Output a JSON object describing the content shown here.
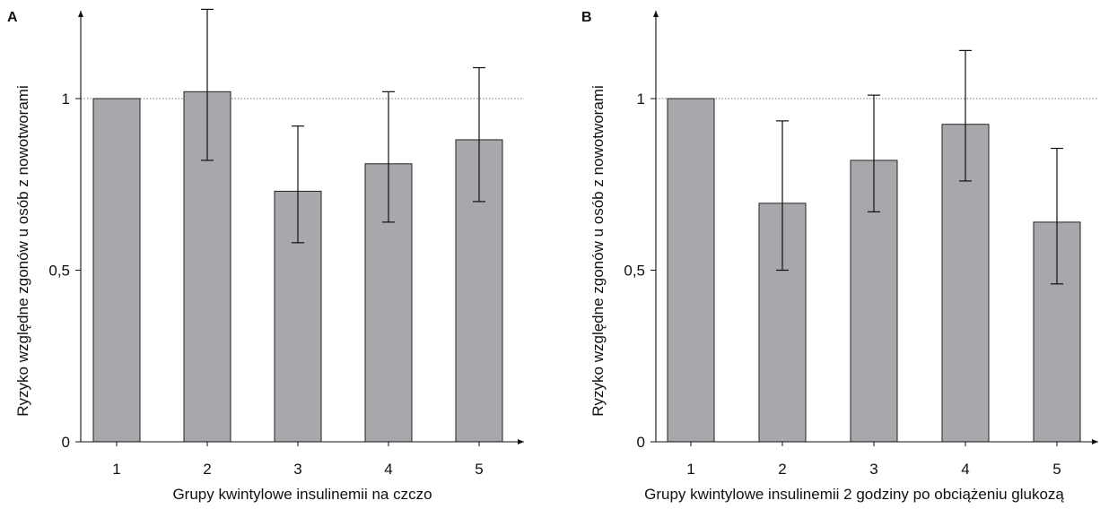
{
  "chart_data": [
    {
      "type": "bar",
      "panel_label": "A",
      "categories": [
        "1",
        "2",
        "3",
        "4",
        "5"
      ],
      "values": [
        1.0,
        1.02,
        0.73,
        0.81,
        0.88
      ],
      "error_bars": [
        {
          "upper": 1.0,
          "lower": 1.0
        },
        {
          "upper": 1.26,
          "lower": 0.82
        },
        {
          "upper": 0.92,
          "lower": 0.58
        },
        {
          "upper": 1.02,
          "lower": 0.64
        },
        {
          "upper": 1.09,
          "lower": 0.7
        }
      ],
      "xlabel": "Grupy kwintylowe insulinemii na czczo",
      "ylabel": "Ryzyko względne zgonów u osób z nowotworami",
      "ylim": [
        0,
        1.25
      ],
      "yticks": [
        {
          "value": 0,
          "label": "0"
        },
        {
          "value": 0.5,
          "label": "0,5"
        },
        {
          "value": 1,
          "label": "1"
        }
      ],
      "reference_line": 1,
      "bar_color": "#a7a8ab"
    },
    {
      "type": "bar",
      "panel_label": "B",
      "categories": [
        "1",
        "2",
        "3",
        "4",
        "5"
      ],
      "values": [
        1.0,
        0.695,
        0.82,
        0.925,
        0.64
      ],
      "error_bars": [
        {
          "upper": 1.0,
          "lower": 1.0
        },
        {
          "upper": 0.935,
          "lower": 0.5
        },
        {
          "upper": 1.01,
          "lower": 0.67
        },
        {
          "upper": 1.14,
          "lower": 0.76
        },
        {
          "upper": 0.855,
          "lower": 0.46
        }
      ],
      "xlabel": "Grupy kwintylowe insulinemii 2 godziny po obciążeniu glukozą",
      "ylabel": "Ryzyko względne zgonów u osób z nowotworami",
      "ylim": [
        0,
        1.25
      ],
      "yticks": [
        {
          "value": 0,
          "label": "0"
        },
        {
          "value": 0.5,
          "label": "0,5"
        },
        {
          "value": 1,
          "label": "1"
        }
      ],
      "reference_line": 1,
      "bar_color": "#a7a8ab"
    }
  ]
}
